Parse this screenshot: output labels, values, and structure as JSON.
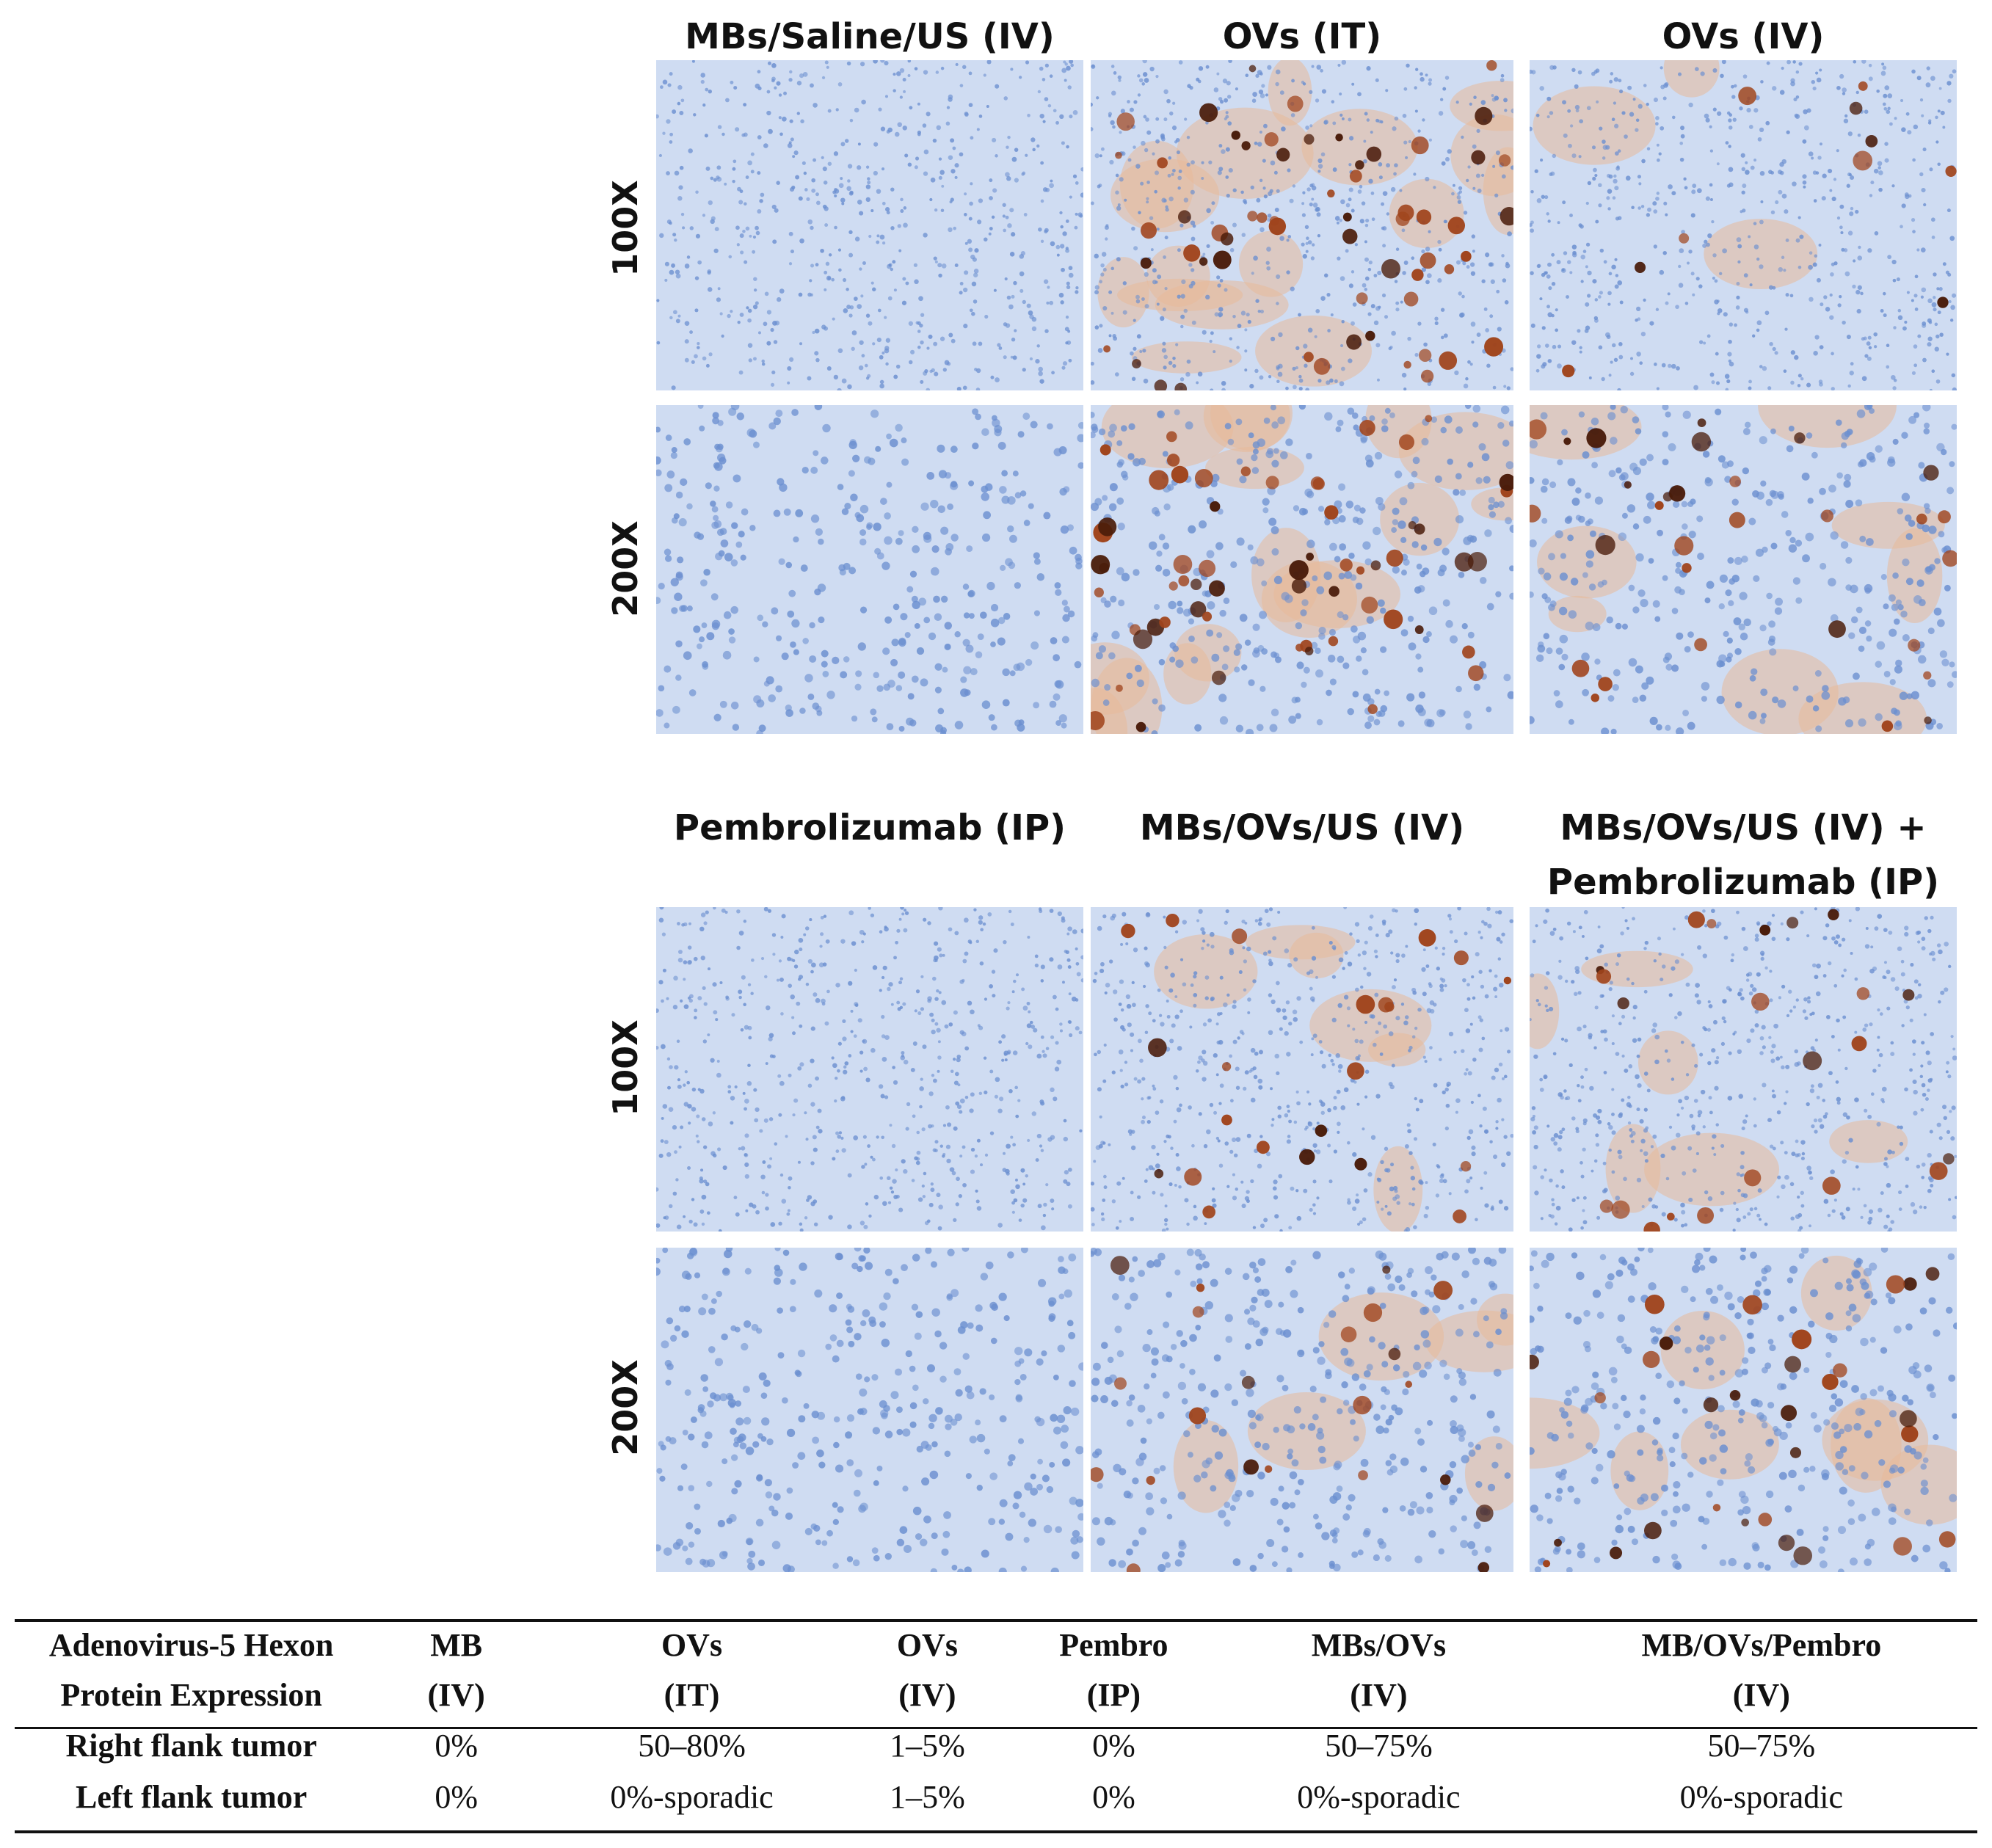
{
  "top_block": {
    "columns": [
      "MBs/Saline/US (IV)",
      "OVs (IT)",
      "OVs (IV)"
    ],
    "rows": [
      "100X",
      "200X"
    ]
  },
  "bottom_block": {
    "columns": [
      "Pembrolizumab (IP)",
      "MBs/OVs/US (IV)",
      "MBs/OVs/US (IV) +",
      "Pembrolizumab (IP)"
    ],
    "rows": [
      "100X",
      "200X"
    ]
  },
  "panels": [
    {
      "id": "t1a",
      "stain": "none"
    },
    {
      "id": "t2a",
      "stain": "heavy"
    },
    {
      "id": "t3a",
      "stain": "focal"
    },
    {
      "id": "t1b",
      "stain": "none"
    },
    {
      "id": "t2b",
      "stain": "heavy"
    },
    {
      "id": "t3b",
      "stain": "moderate"
    },
    {
      "id": "b1a",
      "stain": "none"
    },
    {
      "id": "b2a",
      "stain": "scattered"
    },
    {
      "id": "b3a",
      "stain": "scattered"
    },
    {
      "id": "b1b",
      "stain": "none"
    },
    {
      "id": "b2b",
      "stain": "scattered"
    },
    {
      "id": "b3b",
      "stain": "moderate"
    }
  ],
  "colors": {
    "tissue_blue": "#cfdcf2",
    "nucleus_blue": "#6b8fd0",
    "dab_brown": "#a0441c",
    "dab_dark": "#4a1c0a"
  },
  "table": {
    "header": [
      [
        "Adenovirus-5 Hexon",
        "Protein Expression"
      ],
      [
        "MB",
        "(IV)"
      ],
      [
        "OVs",
        "(IT)"
      ],
      [
        "OVs",
        "(IV)"
      ],
      [
        "Pembro",
        "(IP)"
      ],
      [
        "MBs/OVs",
        "(IV)"
      ],
      [
        "MB/OVs/Pembro",
        "(IV)"
      ]
    ],
    "rows": [
      [
        "Right flank tumor",
        "0%",
        "50–80%",
        "1–5%",
        "0%",
        "50–75%",
        "50–75%"
      ],
      [
        "Left flank tumor",
        "0%",
        "0%-sporadic",
        "1–5%",
        "0%",
        "0%-sporadic",
        "0%-sporadic"
      ]
    ]
  }
}
